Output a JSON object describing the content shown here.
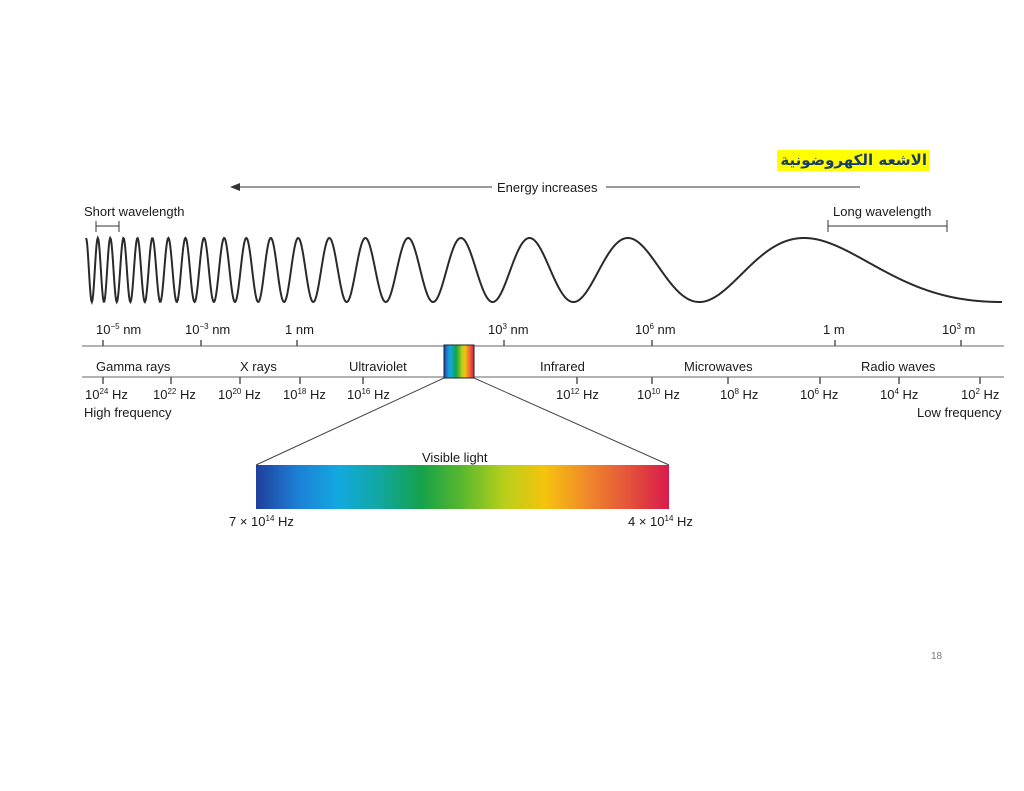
{
  "slide": {
    "title_ar": "الاشعه الكهروضونية",
    "page_number": "18"
  },
  "diagram": {
    "energy_label": "Energy increases",
    "short_wavelength_label": "Short wavelength",
    "long_wavelength_label": "Long wavelength",
    "high_frequency_label": "High frequency",
    "low_frequency_label": "Low frequency",
    "visible_light_label": "Visible light",
    "visible_left": {
      "mantissa": "7 × 10",
      "exp": "14",
      "unit": " Hz"
    },
    "visible_right": {
      "mantissa": "4 × 10",
      "exp": "14",
      "unit": " Hz"
    },
    "wavelength_ticks": [
      {
        "base": "10",
        "exp": "−5",
        "unit": " nm"
      },
      {
        "base": "10",
        "exp": "−3",
        "unit": " nm"
      },
      {
        "base": "1 nm",
        "exp": "",
        "unit": ""
      },
      {
        "base": "10",
        "exp": "3",
        "unit": " nm"
      },
      {
        "base": "10",
        "exp": "6",
        "unit": " nm"
      },
      {
        "base": "1 m",
        "exp": "",
        "unit": ""
      },
      {
        "base": "10",
        "exp": "3",
        "unit": " m"
      }
    ],
    "regions": [
      "Gamma rays",
      "X rays",
      "Ultraviolet",
      "Infrared",
      "Microwaves",
      "Radio waves"
    ],
    "frequency_ticks": [
      {
        "base": "10",
        "exp": "24",
        "unit": " Hz"
      },
      {
        "base": "10",
        "exp": "22",
        "unit": " Hz"
      },
      {
        "base": "10",
        "exp": "20",
        "unit": " Hz"
      },
      {
        "base": "10",
        "exp": "18",
        "unit": " Hz"
      },
      {
        "base": "10",
        "exp": "16",
        "unit": " Hz"
      },
      {
        "base": "10",
        "exp": "12",
        "unit": " Hz"
      },
      {
        "base": "10",
        "exp": "10",
        "unit": " Hz"
      },
      {
        "base": "10",
        "exp": "8",
        "unit": " Hz"
      },
      {
        "base": "10",
        "exp": "6",
        "unit": " Hz"
      },
      {
        "base": "10",
        "exp": "4",
        "unit": " Hz"
      },
      {
        "base": "10",
        "exp": "2",
        "unit": " Hz"
      }
    ],
    "colors": {
      "title_highlight": "#ffff00",
      "title_text": "#1a3b6e",
      "spectrum": [
        "#1f3f9c",
        "#1d7fd6",
        "#12a9e0",
        "#12a7a0",
        "#14a24a",
        "#5ab82c",
        "#b7cf1c",
        "#f5c40c",
        "#f08a2a",
        "#e4543a",
        "#d81b4c"
      ]
    }
  }
}
